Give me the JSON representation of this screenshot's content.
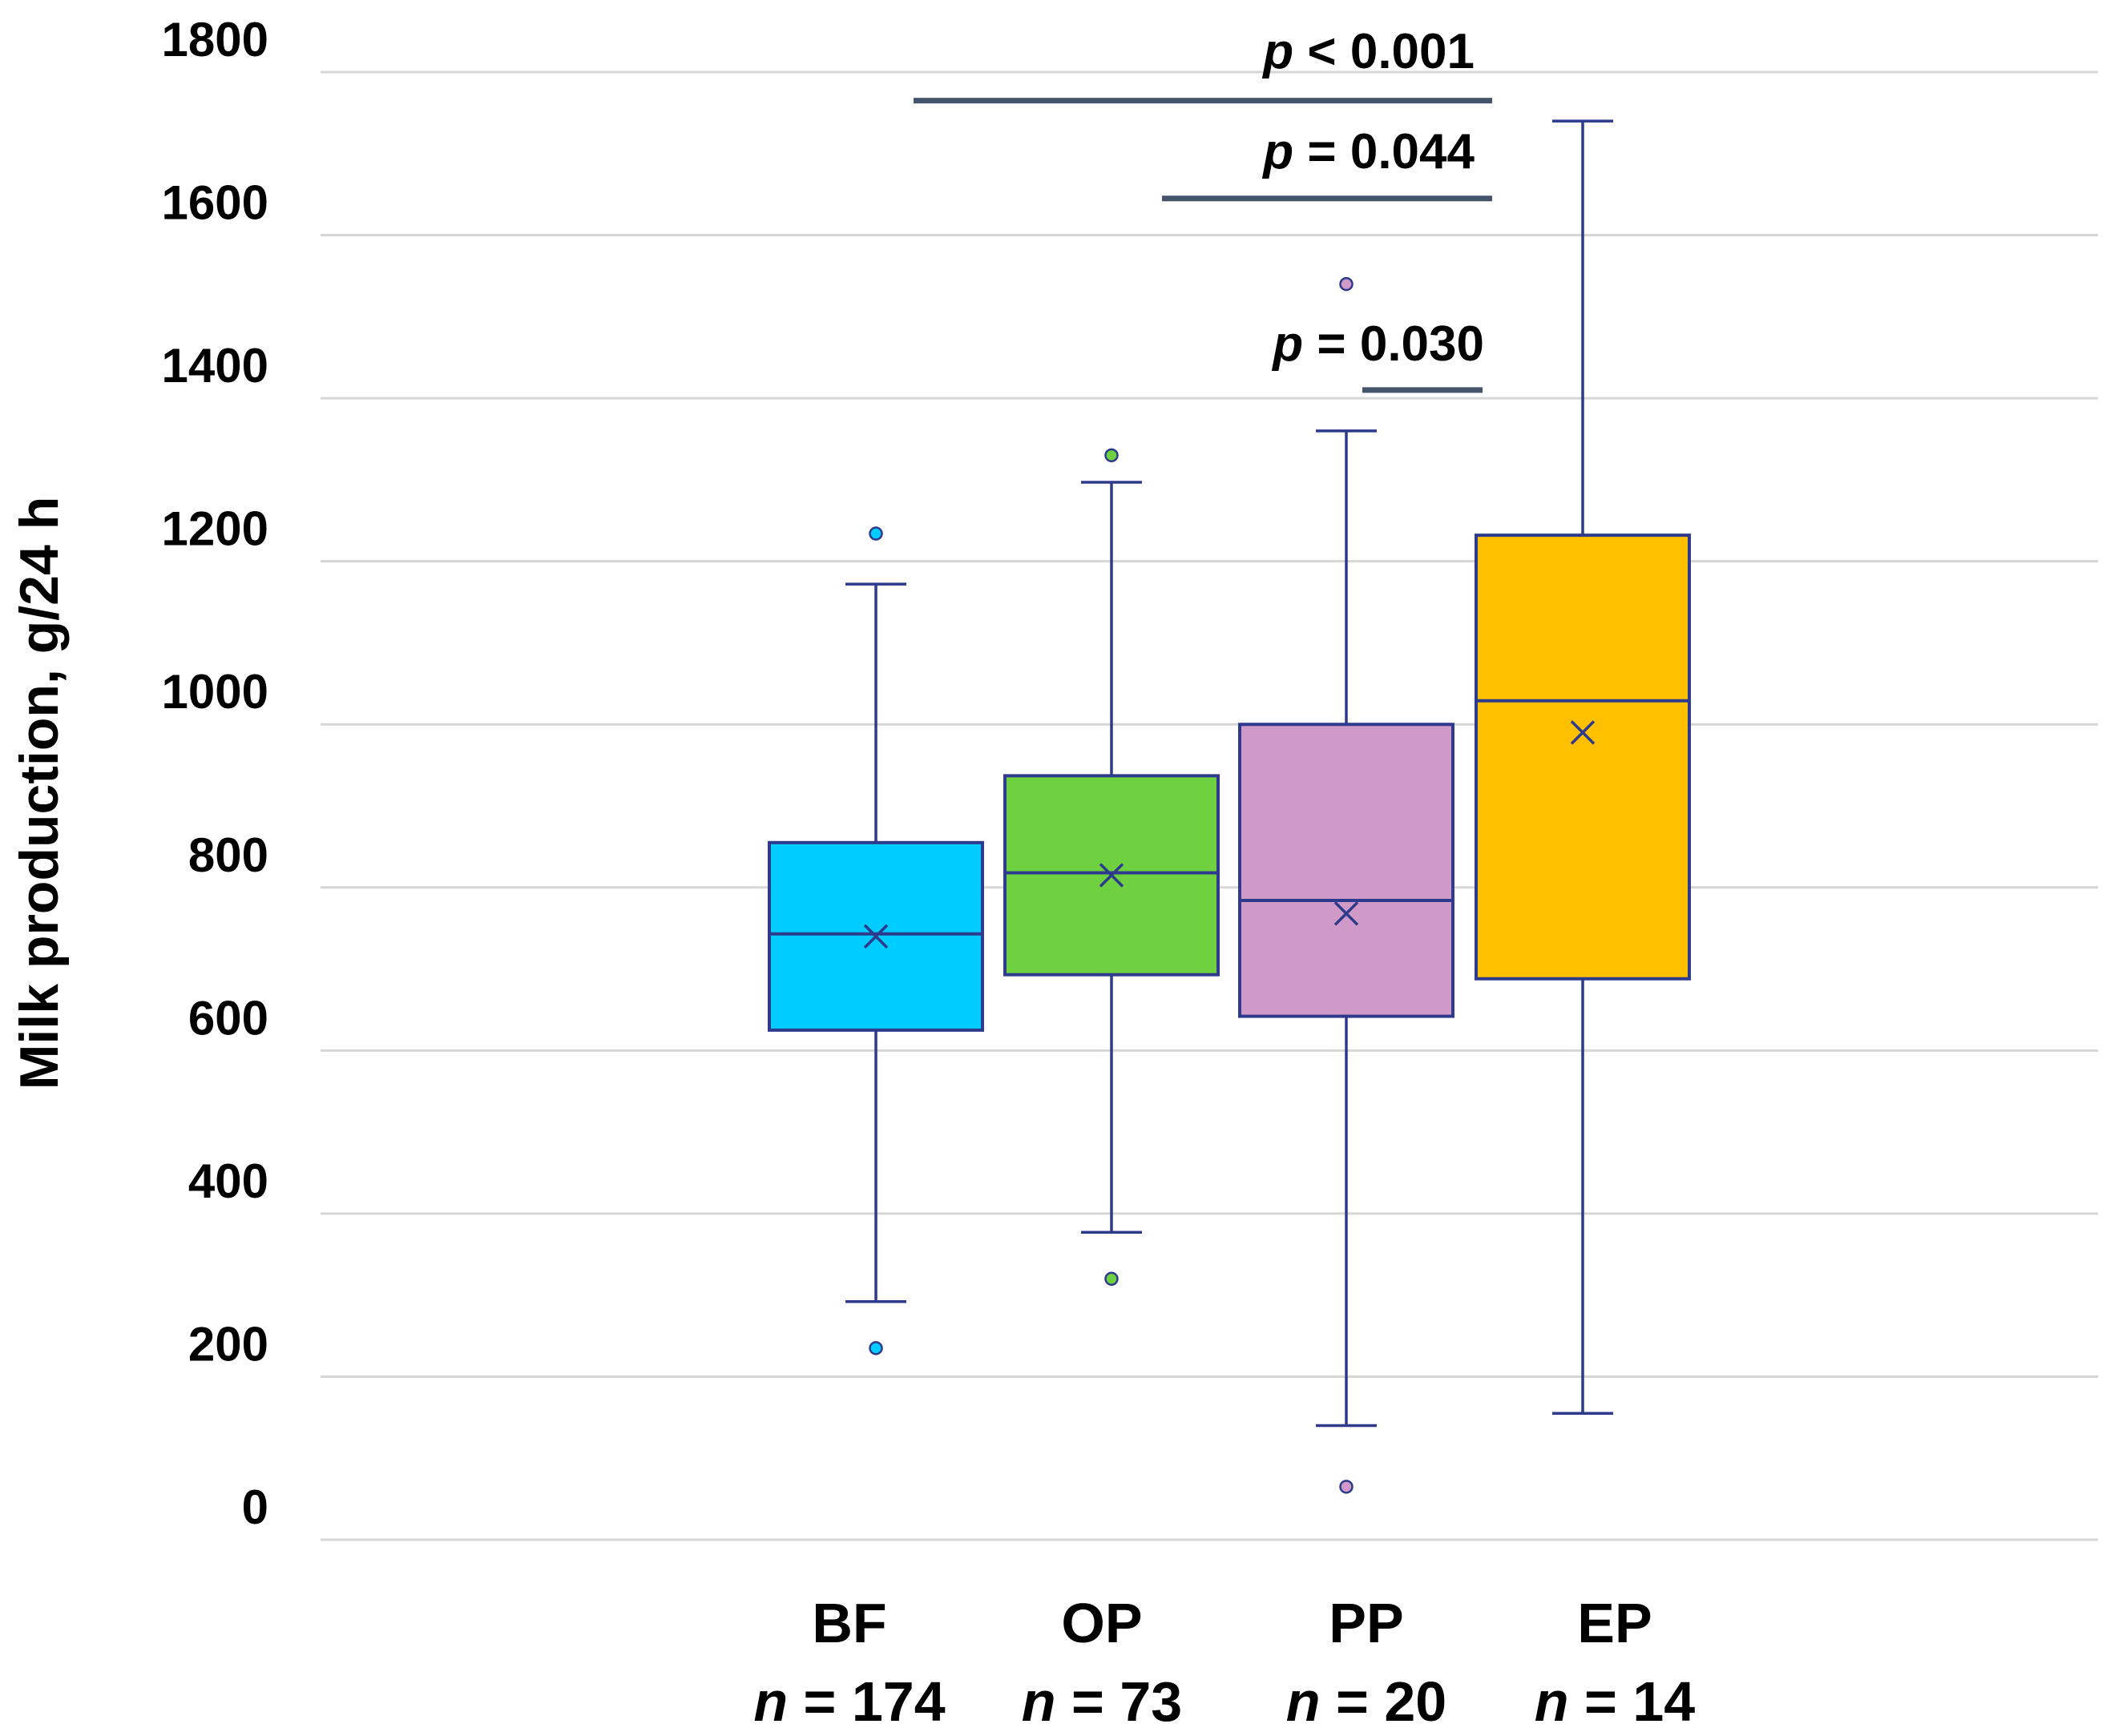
{
  "chart_data": {
    "type": "box",
    "title": "",
    "xlabel": "",
    "ylabel": "Milk production, g/24 h",
    "ylim": [
      0,
      1800
    ],
    "yticks": [
      0,
      200,
      400,
      600,
      800,
      1000,
      1200,
      1400,
      1600,
      1800
    ],
    "ytick_labels": [
      "0",
      "200",
      "400",
      "600",
      "800",
      "1000",
      "1200",
      "1400",
      "1600",
      "1800"
    ],
    "grid": true,
    "n_prefix": "n",
    "n_equals": " = ",
    "groups": [
      {
        "name": "BF",
        "n_value": "174",
        "color": "#00ccff",
        "q1": 625,
        "median": 743,
        "q3": 855,
        "whisker_low": 292,
        "whisker_high": 1172,
        "mean": 740,
        "outliers": [
          235,
          1234
        ]
      },
      {
        "name": "OP",
        "n_value": "73",
        "color": "#6fd13f",
        "q1": 693,
        "median": 818,
        "q3": 937,
        "whisker_low": 377,
        "whisker_high": 1297,
        "mean": 815,
        "outliers": [
          320,
          1330
        ]
      },
      {
        "name": "PP",
        "n_value": "20",
        "color": "#d09ac8",
        "q1": 642,
        "median": 784,
        "q3": 1000,
        "whisker_low": 140,
        "whisker_high": 1360,
        "mean": 768,
        "outliers": [
          65,
          1540
        ]
      },
      {
        "name": "EP",
        "n_value": "14",
        "color": "#ffc000",
        "q1": 688,
        "median": 1029,
        "q3": 1232,
        "whisker_low": 155,
        "whisker_high": 1740,
        "mean": 990,
        "outliers": []
      }
    ],
    "significance": [
      {
        "p_symbol": "p",
        "relation": " < ",
        "value": "0.001",
        "from_group": 0,
        "to_group": 3,
        "line_y": 1765
      },
      {
        "p_symbol": "p",
        "relation": " = ",
        "value": "0.044",
        "from_group": 1,
        "to_group": 3,
        "line_y": 1645
      },
      {
        "p_symbol": "p",
        "relation": " = ",
        "value": "0.030",
        "from_group": 2,
        "to_group": 3,
        "line_y": 1410
      }
    ],
    "colors": {
      "box_edge": "#2e3a8c",
      "whisker": "#2e3a8c",
      "gridline": "#d6d6d6",
      "sig_line": "#44546a"
    }
  }
}
